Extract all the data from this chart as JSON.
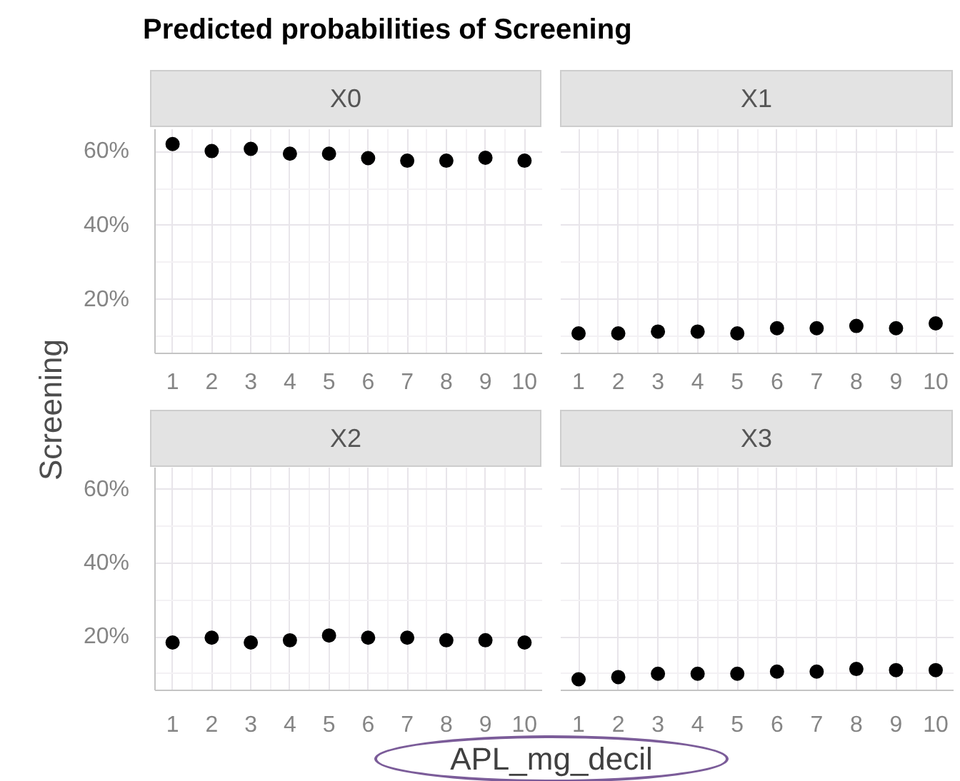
{
  "chart_data": [
    {
      "type": "scatter",
      "title": "Predicted probabilities of Screening",
      "subtitle": "X0",
      "ylabel": "Screening",
      "x": [
        1,
        2,
        3,
        4,
        5,
        6,
        7,
        8,
        9,
        10
      ],
      "values": [
        62.0,
        60.1,
        60.7,
        59.4,
        59.4,
        58.2,
        57.5,
        57.5,
        58.3,
        57.5
      ],
      "color": "#000000",
      "marker": "circle",
      "xlim": [
        0.55,
        10.45
      ],
      "xticks": [
        1,
        2,
        3,
        4,
        5,
        6,
        7,
        8,
        9,
        10
      ],
      "ylim": [
        5.5,
        66
      ],
      "yticks": [
        {
          "value": 20,
          "label": "20%"
        },
        {
          "value": 40,
          "label": "40%"
        },
        {
          "value": 60,
          "label": "60%"
        }
      ],
      "grid": true
    },
    {
      "type": "scatter",
      "subtitle": "X1",
      "x": [
        1,
        2,
        3,
        4,
        5,
        6,
        7,
        8,
        9,
        10
      ],
      "values": [
        10.9,
        10.9,
        11.4,
        11.4,
        10.9,
        12.3,
        12.3,
        12.9,
        12.3,
        13.6
      ],
      "color": "#000000",
      "marker": "circle",
      "xlim": [
        0.55,
        10.45
      ],
      "xticks": [
        1,
        2,
        3,
        4,
        5,
        6,
        7,
        8,
        9,
        10
      ],
      "ylim": [
        5.5,
        66
      ],
      "yticks": [
        20,
        40,
        60
      ],
      "grid": true,
      "tick_labels": "x"
    },
    {
      "type": "scatter",
      "subtitle": "X2",
      "xlabel": "APL_mg_decil",
      "x": [
        1,
        2,
        3,
        4,
        5,
        6,
        7,
        8,
        9,
        10
      ],
      "values": [
        18.5,
        19.8,
        18.5,
        19.1,
        20.4,
        19.8,
        19.8,
        19.1,
        19.1,
        18.5
      ],
      "color": "#000000",
      "marker": "circle",
      "xlim": [
        0.55,
        10.45
      ],
      "xticks": [
        1,
        2,
        3,
        4,
        5,
        6,
        7,
        8,
        9,
        10
      ],
      "ylim": [
        5.5,
        66
      ],
      "yticks": [
        {
          "value": 20,
          "label": "20%"
        },
        {
          "value": 40,
          "label": "40%"
        },
        {
          "value": 60,
          "label": "60%"
        }
      ],
      "grid": true
    },
    {
      "type": "scatter",
      "subtitle": "X3",
      "x": [
        1,
        2,
        3,
        4,
        5,
        6,
        7,
        8,
        9,
        10
      ],
      "values": [
        8.5,
        9.1,
        10.0,
        10.0,
        10.0,
        10.6,
        10.6,
        11.3,
        11.0,
        11.0
      ],
      "color": "#000000",
      "marker": "circle",
      "xlim": [
        0.55,
        10.45
      ],
      "xticks": [
        1,
        2,
        3,
        4,
        5,
        6,
        7,
        8,
        9,
        10
      ],
      "ylim": [
        5.5,
        66
      ],
      "yticks": [
        20,
        40,
        60
      ],
      "grid": true,
      "tick_labels": "x"
    }
  ]
}
